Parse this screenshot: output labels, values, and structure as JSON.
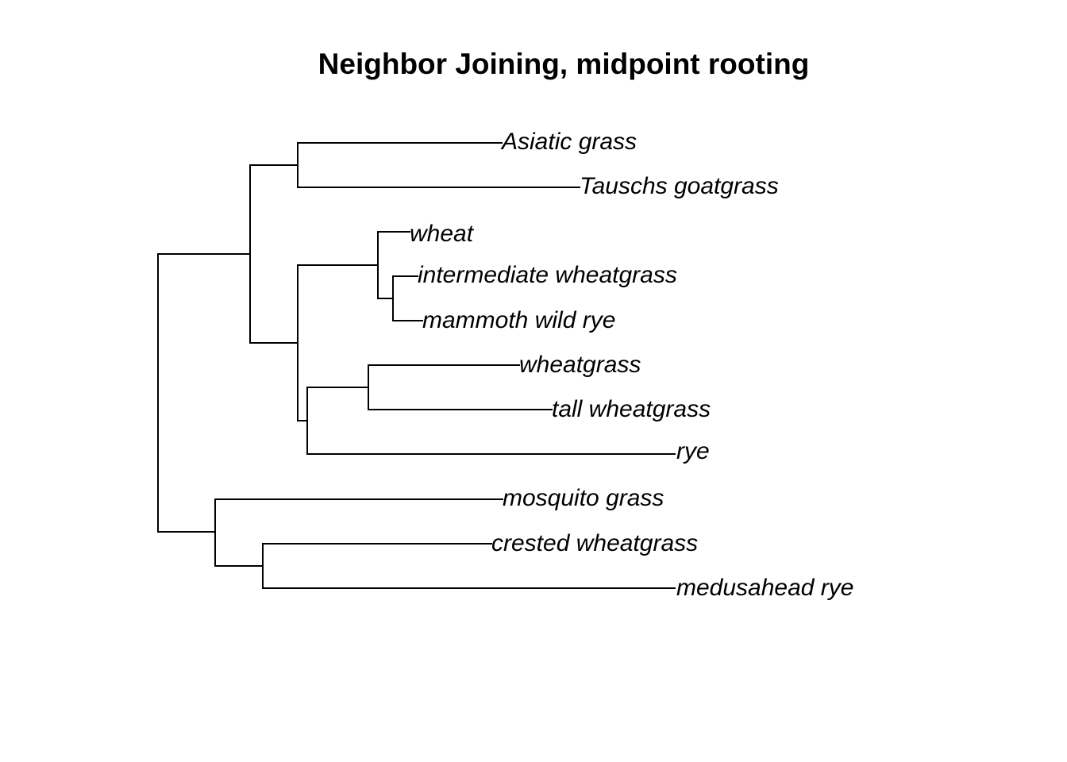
{
  "title": "Neighbor Joining, midpoint rooting",
  "tree": {
    "method": "Neighbor Joining",
    "rooting": "midpoint",
    "orientation": "rightwards",
    "label_style": "italic",
    "tips": [
      "Asiatic grass",
      "Tauschs goatgrass",
      "wheat",
      "intermediate wheatgrass",
      "mammoth wild rye",
      "wheatgrass",
      "tall wheatgrass",
      "rye",
      "mosquito grass",
      "crested wheatgrass",
      "medusahead rye"
    ],
    "newick_topology": "(((Asiatic grass,Tauschs goatgrass),((wheat,(intermediate wheatgrass,mammoth wild rye)),((wheatgrass,tall wheatgrass),rye))),(mosquito grass,(crested wheatgrass,medusahead rye)));"
  }
}
